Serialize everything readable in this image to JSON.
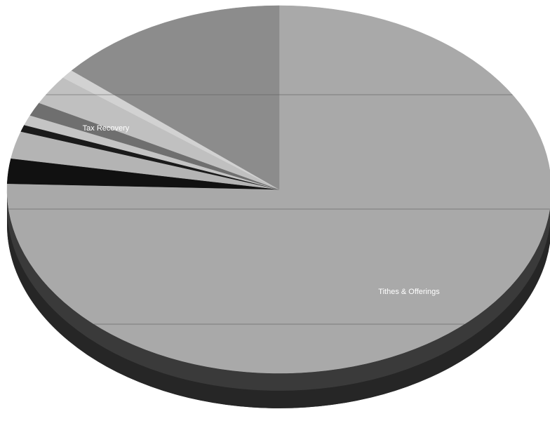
{
  "chart_data": {
    "type": "pie",
    "title": "",
    "style": "3d",
    "start": "top, clockwise",
    "grid": true,
    "legend": "none",
    "slices": [
      {
        "label": "Tithes & Offerings",
        "value": 75.5,
        "color": "#a9a9a9",
        "show_label": true
      },
      {
        "label": "",
        "value": 2.2,
        "color": "#111111",
        "show_label": false
      },
      {
        "label": "",
        "value": 2.4,
        "color": "#b4b4b4",
        "show_label": false
      },
      {
        "label": "",
        "value": 0.6,
        "color": "#1a1a1a",
        "show_label": false
      },
      {
        "label": "",
        "value": 0.9,
        "color": "#c4c4c4",
        "show_label": false
      },
      {
        "label": "",
        "value": 1.2,
        "color": "#6f6f6f",
        "show_label": false
      },
      {
        "label": "",
        "value": 2.6,
        "color": "#c0c0c0",
        "show_label": false
      },
      {
        "label": "",
        "value": 0.8,
        "color": "#d2d2d2",
        "show_label": false
      },
      {
        "label": "Tax Recovery",
        "value": 13.8,
        "color": "#8c8c8c",
        "show_label": true
      }
    ]
  }
}
